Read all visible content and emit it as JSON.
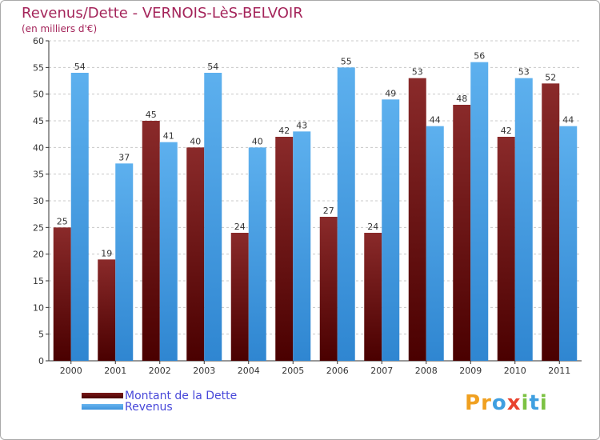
{
  "title": "Revenus/Dette - VERNOIS-LèS-BELVOIR",
  "subtitle": "(en milliers d'€)",
  "logo_text": "Proxiti",
  "colors": {
    "title": "#a4245a",
    "dette": "#6d1010",
    "revenus": "#4aa3e8",
    "legend_text": "#4747d9"
  },
  "chart_data": {
    "type": "bar",
    "title": "Revenus/Dette - VERNOIS-LèS-BELVOIR",
    "subtitle": "(en milliers d'€)",
    "categories": [
      "2000",
      "2001",
      "2002",
      "2003",
      "2004",
      "2005",
      "2006",
      "2007",
      "2008",
      "2009",
      "2010",
      "2011"
    ],
    "series": [
      {
        "name": "Montant de la Dette",
        "values": [
          25,
          19,
          45,
          40,
          24,
          42,
          27,
          24,
          53,
          48,
          42,
          52
        ]
      },
      {
        "name": "Revenus",
        "values": [
          54,
          37,
          41,
          54,
          40,
          43,
          55,
          49,
          44,
          56,
          53,
          44
        ]
      }
    ],
    "ylim": [
      0,
      60
    ],
    "yticks": [
      0,
      5,
      10,
      15,
      20,
      25,
      30,
      35,
      40,
      45,
      50,
      55,
      60
    ],
    "grid": "horizontal-dashed",
    "legend": "bottom-left"
  }
}
